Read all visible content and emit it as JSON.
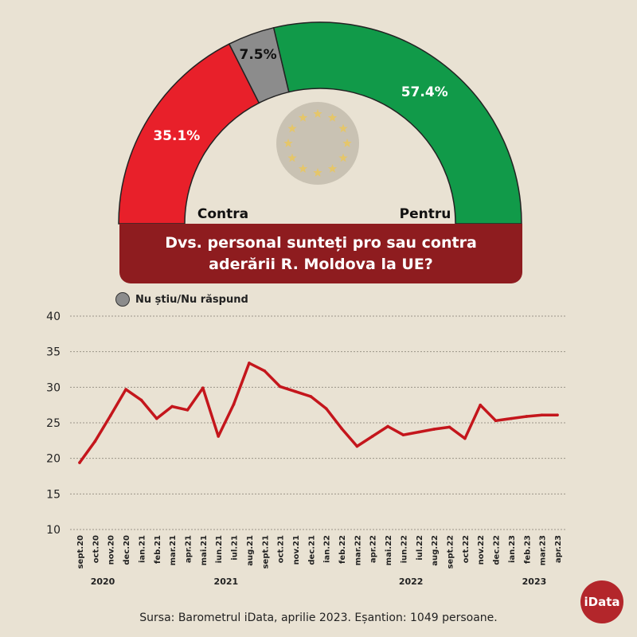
{
  "question": {
    "line1": "Dvs. personal sunteți pro sau contra",
    "line2": "aderării R. Moldova la UE?"
  },
  "legend": {
    "label": "Nu știu/Nu răspund"
  },
  "source": "Sursa: Barometrul iData, aprilie 2023. Eșantion: 1049 persoane.",
  "logo": {
    "text": "iData"
  },
  "colors": {
    "contra": "#e8202a",
    "unknown": "#8c8c8c",
    "pentru": "#119a49",
    "banner": "#8e1c1f",
    "line": "#c4161c",
    "eu_circle": "#c9c2b3",
    "eu_star": "#e5c66a"
  },
  "chart_data": [
    {
      "type": "pie",
      "variant": "semicircle-donut",
      "slices": [
        {
          "label": "Contra",
          "value": 35.1,
          "value_label": "35.1%",
          "color": "#e8202a"
        },
        {
          "label": "",
          "value": 7.5,
          "value_label": "7.5%",
          "color": "#8c8c8c"
        },
        {
          "label": "Pentru",
          "value": 57.4,
          "value_label": "57.4%",
          "color": "#119a49"
        }
      ],
      "center_icon": "eu-stars-icon"
    },
    {
      "type": "line",
      "x": [
        "sept.20",
        "oct.20",
        "nov.20",
        "dec.20",
        "ian.21",
        "feb.21",
        "mar.21",
        "apr.21",
        "mai.21",
        "iun.21",
        "iul.21",
        "aug.21",
        "sept.21",
        "oct.21",
        "nov.21",
        "dec.21",
        "ian.22",
        "feb.22",
        "mar.22",
        "apr.22",
        "mai.22",
        "iun.22",
        "iul.22",
        "aug.22",
        "sept.22",
        "oct.22",
        "nov.22",
        "dec.22",
        "ian.23",
        "feb.23",
        "mar.23",
        "apr.23"
      ],
      "series": [
        {
          "values": [
            19.4,
            22.4,
            26.0,
            29.7,
            28.2,
            25.6,
            27.3,
            26.8,
            29.9,
            23.1,
            27.6,
            33.4,
            32.3,
            30.1,
            29.4,
            28.7,
            27.0,
            24.2,
            21.7,
            23.1,
            24.5,
            23.3,
            23.7,
            24.1,
            24.4,
            22.8,
            27.5,
            25.3,
            25.6,
            25.9,
            26.1,
            26.1
          ]
        }
      ],
      "yticks": [
        10,
        15,
        20,
        25,
        30,
        35,
        40
      ],
      "ylim": [
        10,
        40
      ],
      "years": [
        {
          "label": "2020",
          "start": 0,
          "end": 3
        },
        {
          "label": "2021",
          "start": 4,
          "end": 15
        },
        {
          "label": "2022",
          "start": 16,
          "end": 27
        },
        {
          "label": "2023",
          "start": 28,
          "end": 31
        }
      ],
      "grid": true
    }
  ]
}
